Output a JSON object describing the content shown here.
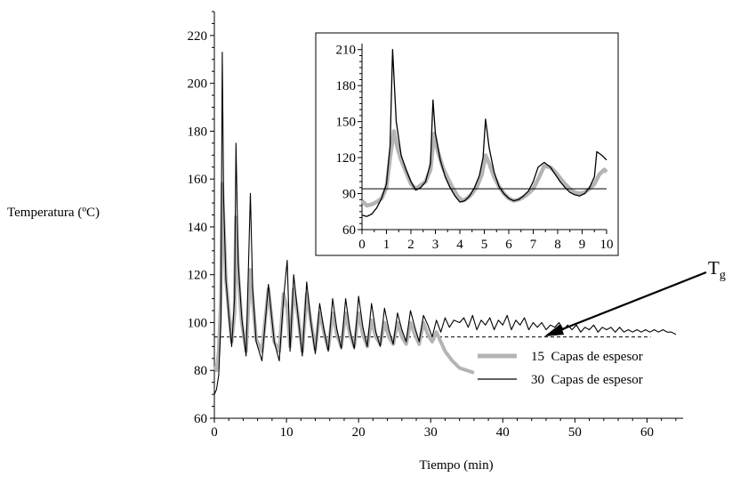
{
  "colors": {
    "series_15": "#b4b4b4",
    "series_30": "#000000",
    "axis": "#000000"
  },
  "chart_data": [
    {
      "type": "line",
      "title": "",
      "xlabel": "Tiempo (min)",
      "ylabel": "Temperatura (ºC)",
      "xlim": [
        0,
        65
      ],
      "ylim": [
        60,
        230
      ],
      "xticks": [
        0,
        10,
        20,
        30,
        40,
        50,
        60
      ],
      "yticks": [
        60,
        80,
        100,
        120,
        140,
        160,
        180,
        200,
        220
      ],
      "grid": false,
      "legend": "bottom-right",
      "reference_line": {
        "y": 94,
        "style": "dashed"
      },
      "annotation": {
        "text": "T",
        "subscript": "g"
      },
      "series": [
        {
          "name": "15  Capas de espesor",
          "x": [
            0,
            0.3,
            0.6,
            0.9,
            1.1,
            1.3,
            1.6,
            2.0,
            2.4,
            2.8,
            3.0,
            3.3,
            3.8,
            4.4,
            5.0,
            5.3,
            5.8,
            6.6,
            7.5,
            8.3,
            9.0,
            9.6,
            10.1,
            10.5,
            11.0,
            11.6,
            12.2,
            12.8,
            13.4,
            14.0,
            14.6,
            15.2,
            15.8,
            16.4,
            17.0,
            17.6,
            18.2,
            18.8,
            19.4,
            20.0,
            20.6,
            21.2,
            21.8,
            22.4,
            23.0,
            23.6,
            24.2,
            24.8,
            25.4,
            26.0,
            26.6,
            27.2,
            27.8,
            28.4,
            29.0,
            29.6,
            30.2,
            30.8,
            31.4,
            32.0,
            33.0,
            34.0,
            35.0,
            36.0
          ],
          "y": [
            82,
            80,
            88,
            110,
            158,
            142,
            118,
            105,
            92,
            104,
            144,
            120,
            100,
            88,
            122,
            110,
            93,
            88,
            114,
            92,
            88,
            112,
            106,
            90,
            114,
            103,
            88,
            112,
            100,
            89,
            104,
            96,
            89,
            104,
            95,
            90,
            104,
            95,
            90,
            104,
            95,
            90,
            101,
            94,
            91,
            100,
            94,
            91,
            100,
            94,
            91,
            100,
            95,
            91,
            100,
            95,
            92,
            96,
            92,
            88,
            84,
            81,
            80,
            79
          ]
        },
        {
          "name": "30  Capas de espesor",
          "x": [
            0,
            0.3,
            0.6,
            0.9,
            1.1,
            1.3,
            1.6,
            2.0,
            2.4,
            2.8,
            3.0,
            3.3,
            3.8,
            4.4,
            5.0,
            5.3,
            5.8,
            6.6,
            7.5,
            8.3,
            9.0,
            9.6,
            10.1,
            10.5,
            11.0,
            11.6,
            12.2,
            12.8,
            13.4,
            14.0,
            14.6,
            15.2,
            15.8,
            16.4,
            17.0,
            17.6,
            18.2,
            18.8,
            19.4,
            20.0,
            20.6,
            21.2,
            21.8,
            22.4,
            23.0,
            23.6,
            24.2,
            24.8,
            25.4,
            26.0,
            26.6,
            27.2,
            27.8,
            28.4,
            29.0,
            29.6,
            30.2,
            30.8,
            31.4,
            32.0,
            32.6,
            33.2,
            34.0,
            34.6,
            35.2,
            35.8,
            36.4,
            37.0,
            37.6,
            38.2,
            38.8,
            39.4,
            40.0,
            40.6,
            41.2,
            41.8,
            42.4,
            43.0,
            43.6,
            44.2,
            44.8,
            45.4,
            46.0,
            46.6,
            47.2,
            47.8,
            48.4,
            49.0,
            49.6,
            50.2,
            50.8,
            51.4,
            52.0,
            52.6,
            53.2,
            53.8,
            54.4,
            55.0,
            55.6,
            56.2,
            56.8,
            57.4,
            58.0,
            58.6,
            59.2,
            59.8,
            60.4,
            61.0,
            61.6,
            62.2,
            62.8,
            63.4,
            64.0
          ],
          "y": [
            70,
            72,
            78,
            100,
            213,
            150,
            118,
            103,
            90,
            110,
            175,
            125,
            102,
            86,
            154,
            115,
            92,
            84,
            116,
            92,
            84,
            110,
            126,
            88,
            120,
            103,
            86,
            117,
            100,
            87,
            108,
            97,
            88,
            110,
            97,
            89,
            110,
            97,
            89,
            111,
            98,
            90,
            108,
            96,
            90,
            106,
            97,
            91,
            104,
            97,
            92,
            105,
            98,
            92,
            103,
            99,
            94,
            101,
            96,
            102,
            98,
            101,
            100,
            102,
            98,
            103,
            97,
            101,
            99,
            102,
            97,
            101,
            99,
            103,
            97,
            101,
            99,
            102,
            97,
            100,
            98,
            100,
            97,
            99,
            98,
            100,
            97,
            99,
            97,
            99,
            96,
            98,
            97,
            99,
            96,
            98,
            97,
            98,
            96,
            98,
            96,
            97,
            96,
            97,
            96,
            97,
            96,
            97,
            96,
            97,
            96,
            96,
            95
          ]
        }
      ]
    },
    {
      "type": "line",
      "title": "",
      "xlabel": "",
      "ylabel": "",
      "xlim": [
        0,
        10
      ],
      "ylim": [
        60,
        215
      ],
      "xticks": [
        0,
        1,
        2,
        3,
        4,
        5,
        6,
        7,
        8,
        9,
        10
      ],
      "yticks": [
        60,
        90,
        120,
        150,
        180,
        210
      ],
      "grid": false,
      "reference_line": {
        "y": 94,
        "style": "solid"
      },
      "series": [
        {
          "name": "15  Capas de espesor",
          "x": [
            0,
            0.2,
            0.4,
            0.6,
            0.8,
            1.0,
            1.15,
            1.3,
            1.45,
            1.6,
            1.8,
            2.0,
            2.2,
            2.4,
            2.6,
            2.8,
            2.95,
            3.1,
            3.3,
            3.5,
            3.7,
            3.9,
            4.1,
            4.3,
            4.5,
            4.7,
            4.9,
            5.05,
            5.2,
            5.4,
            5.6,
            5.8,
            6.0,
            6.2,
            6.4,
            6.6,
            6.8,
            7.0,
            7.2,
            7.45,
            7.7,
            7.9,
            8.1,
            8.3,
            8.5,
            8.7,
            8.9,
            9.1,
            9.3,
            9.5,
            9.7,
            9.9,
            10.0
          ],
          "y": [
            84,
            80,
            81,
            83,
            86,
            95,
            120,
            142,
            128,
            118,
            108,
            98,
            94,
            97,
            100,
            110,
            140,
            125,
            112,
            103,
            95,
            88,
            84,
            86,
            90,
            96,
            106,
            122,
            115,
            104,
            96,
            90,
            86,
            84,
            85,
            87,
            90,
            94,
            102,
            113,
            112,
            108,
            103,
            98,
            94,
            91,
            90,
            91,
            94,
            98,
            106,
            110,
            108
          ]
        },
        {
          "name": "30  Capas de espesor",
          "x": [
            0,
            0.2,
            0.4,
            0.6,
            0.8,
            1.0,
            1.15,
            1.25,
            1.4,
            1.6,
            1.8,
            2.0,
            2.2,
            2.4,
            2.6,
            2.8,
            2.9,
            3.0,
            3.2,
            3.4,
            3.6,
            3.8,
            4.0,
            4.2,
            4.4,
            4.6,
            4.8,
            4.95,
            5.05,
            5.2,
            5.4,
            5.6,
            5.8,
            6.0,
            6.2,
            6.4,
            6.6,
            6.8,
            7.0,
            7.2,
            7.45,
            7.7,
            7.9,
            8.1,
            8.3,
            8.5,
            8.7,
            8.9,
            9.1,
            9.3,
            9.5,
            9.6,
            9.8,
            10.0
          ],
          "y": [
            72,
            71,
            73,
            78,
            86,
            98,
            130,
            210,
            150,
            122,
            110,
            100,
            93,
            95,
            100,
            115,
            168,
            140,
            118,
            104,
            95,
            88,
            83,
            84,
            88,
            95,
            105,
            120,
            152,
            128,
            108,
            96,
            90,
            86,
            84,
            85,
            88,
            92,
            100,
            112,
            116,
            112,
            106,
            100,
            95,
            91,
            89,
            88,
            90,
            95,
            104,
            125,
            122,
            118
          ]
        }
      ]
    }
  ]
}
